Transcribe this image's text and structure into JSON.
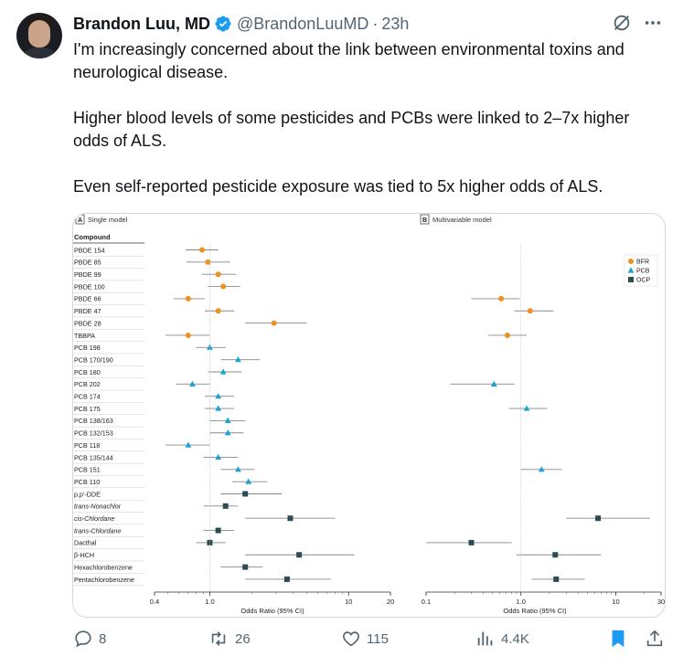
{
  "tweet": {
    "author_name": "Brandon Luu, MD",
    "handle": "@BrandonLuuMD",
    "separator": "·",
    "time": "23h",
    "paragraphs": [
      "I'm increasingly concerned about the link between environmental toxins and neurological disease.",
      "Higher blood levels of some pesticides and PCBs were linked to 2–7x higher odds of ALS.",
      "Even self-reported pesticide exposure was tied to 5x higher odds of ALS."
    ],
    "accent_color": "#1d9bf0"
  },
  "actions": {
    "replies": "8",
    "reposts": "26",
    "likes": "115",
    "views": "4.4K"
  },
  "chart_data": {
    "type": "scatter",
    "subtype": "forest-plot",
    "panel_a_tag": "A",
    "panel_a_title": "Single model",
    "panel_b_tag": "B",
    "panel_b_title": "Multivariable model",
    "column_header": "Compound",
    "xlabel": "Odds Ratio (95% CI)",
    "x_scale": "log",
    "panel_a_ticks": [
      "0.4",
      "1.0",
      "10",
      "20"
    ],
    "panel_b_ticks": [
      "0.1",
      "1.0",
      "10",
      "30"
    ],
    "panel_a_xlim": [
      0.4,
      20
    ],
    "panel_b_xlim": [
      0.1,
      30
    ],
    "legend": [
      {
        "name": "BFR",
        "color": "#f0901e",
        "shape": "circle"
      },
      {
        "name": "PCB",
        "color": "#1aa3d8",
        "shape": "triangle"
      },
      {
        "name": "OCP",
        "color": "#2d4b55",
        "shape": "square"
      }
    ],
    "legend_position": "top-right of panel B",
    "rows": [
      {
        "label": "PBDE 154",
        "group": "BFR",
        "a": [
          0.88,
          0.67,
          1.15
        ],
        "b": null
      },
      {
        "label": "PBDE 85",
        "group": "BFR",
        "a": [
          0.97,
          0.68,
          1.4
        ],
        "b": null
      },
      {
        "label": "PBDE 99",
        "group": "BFR",
        "a": [
          1.15,
          0.88,
          1.55
        ],
        "b": null
      },
      {
        "label": "PBDE 100",
        "group": "BFR",
        "a": [
          1.25,
          0.97,
          1.65
        ],
        "b": null
      },
      {
        "label": "PBDE 66",
        "group": "BFR",
        "a": [
          0.7,
          0.55,
          0.92
        ],
        "b": [
          0.62,
          0.3,
          0.97
        ]
      },
      {
        "label": "PBDE 47",
        "group": "BFR",
        "a": [
          1.15,
          0.92,
          1.5
        ],
        "b": [
          1.25,
          0.85,
          2.2
        ]
      },
      {
        "label": "PBDE 28",
        "group": "BFR",
        "a": [
          2.9,
          1.8,
          5.0
        ],
        "b": null
      },
      {
        "label": "TBBPA",
        "group": "BFR",
        "a": [
          0.7,
          0.48,
          1.0
        ],
        "b": [
          0.72,
          0.45,
          1.15
        ]
      },
      {
        "label": "PCB 198",
        "group": "PCB",
        "a": [
          1.0,
          0.8,
          1.3
        ],
        "b": null
      },
      {
        "label": "PCB 170/190",
        "group": "PCB",
        "a": [
          1.6,
          1.2,
          2.3
        ],
        "b": null
      },
      {
        "label": "PCB 180",
        "group": "PCB",
        "a": [
          1.25,
          0.97,
          1.7
        ],
        "b": null
      },
      {
        "label": "PCB 202",
        "group": "PCB",
        "a": [
          0.75,
          0.57,
          1.0
        ],
        "b": [
          0.52,
          0.18,
          0.85
        ]
      },
      {
        "label": "PCB 174",
        "group": "PCB",
        "a": [
          1.15,
          0.92,
          1.5
        ],
        "b": null
      },
      {
        "label": "PCB 175",
        "group": "PCB",
        "a": [
          1.15,
          0.92,
          1.5
        ],
        "b": [
          1.15,
          0.75,
          1.9
        ]
      },
      {
        "label": "PCB 138/163",
        "group": "PCB",
        "a": [
          1.35,
          1.0,
          1.8
        ],
        "b": null
      },
      {
        "label": "PCB 132/153",
        "group": "PCB",
        "a": [
          1.35,
          1.0,
          1.75
        ],
        "b": null
      },
      {
        "label": "PCB 118",
        "group": "PCB",
        "a": [
          0.7,
          0.48,
          1.0
        ],
        "b": null
      },
      {
        "label": "PCB 135/144",
        "group": "PCB",
        "a": [
          1.15,
          0.9,
          1.6
        ],
        "b": null
      },
      {
        "label": "PCB 151",
        "group": "PCB",
        "a": [
          1.6,
          1.2,
          2.1
        ],
        "b": [
          1.65,
          1.0,
          2.7
        ]
      },
      {
        "label": "PCB 110",
        "group": "PCB",
        "a": [
          1.9,
          1.45,
          2.6
        ],
        "b": null
      },
      {
        "label": "p,p′-DDE",
        "group": "OCP",
        "a": [
          1.8,
          1.2,
          3.3
        ],
        "b": null
      },
      {
        "label": "trans-Nonachlor",
        "group": "OCP",
        "a": [
          1.3,
          0.9,
          1.6
        ],
        "b": null
      },
      {
        "label": "cis-Chlordane",
        "group": "OCP",
        "a": [
          3.8,
          1.8,
          8.0
        ],
        "b": [
          6.5,
          3.0,
          23.0
        ]
      },
      {
        "label": "trans-Chlordane",
        "group": "OCP",
        "a": [
          1.15,
          0.9,
          1.5
        ],
        "b": null
      },
      {
        "label": "Dacthal",
        "group": "OCP",
        "a": [
          1.0,
          0.8,
          1.3
        ],
        "b": [
          0.3,
          0.1,
          0.8
        ]
      },
      {
        "label": "β-HCH",
        "group": "OCP",
        "a": [
          4.4,
          1.8,
          11.0
        ],
        "b": [
          2.3,
          0.9,
          7.0
        ]
      },
      {
        "label": "Hexachlorobenzene",
        "group": "OCP",
        "a": [
          1.8,
          1.2,
          2.4
        ],
        "b": null
      },
      {
        "label": "Pentachlorobenzene",
        "group": "OCP",
        "a": [
          3.6,
          1.8,
          7.5
        ],
        "b": [
          2.35,
          1.3,
          4.7
        ]
      }
    ]
  }
}
